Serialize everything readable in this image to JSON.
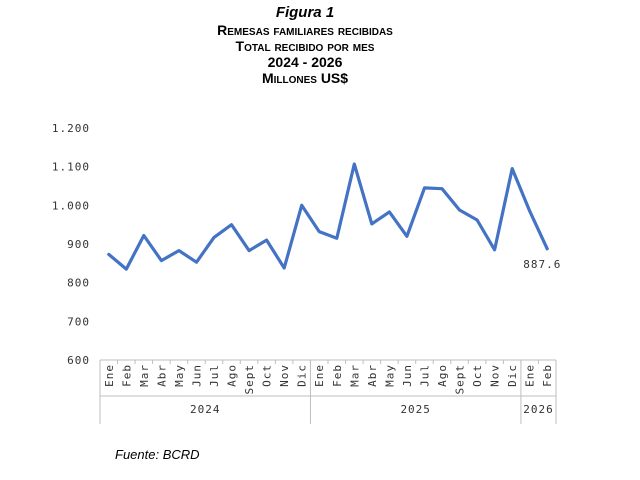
{
  "title": {
    "figure": "Figura 1",
    "line1": "Remesas familiares recibidas",
    "line2": "Total recibido por mes",
    "line3": "2024 - 2026",
    "line4": "Millones US$"
  },
  "source": "Fuente: BCRD",
  "chart_data": {
    "type": "line",
    "categories": [
      "Ene",
      "Feb",
      "Mar",
      "Abr",
      "May",
      "Jun",
      "Jul",
      "Ago",
      "Sept",
      "Oct",
      "Nov",
      "Dic",
      "Ene",
      "Feb",
      "Mar",
      "Abr",
      "May",
      "Jun",
      "Jul",
      "Ago",
      "Sept",
      "Oct",
      "Nov",
      "Dic",
      "Ene",
      "Feb"
    ],
    "year_groups": [
      {
        "label": "2024",
        "count": 12
      },
      {
        "label": "2025",
        "count": 12
      },
      {
        "label": "2026",
        "count": 2
      }
    ],
    "series": [
      {
        "values": [
          873,
          835,
          922,
          857,
          883,
          853,
          917,
          950,
          883,
          910,
          838,
          1000,
          932,
          915,
          1107,
          952,
          983,
          920,
          1045,
          1043,
          988,
          962,
          885,
          1095,
          985,
          887.6
        ],
        "color": "#4472C4"
      }
    ],
    "data_labels": [
      {
        "index": 25,
        "text": "887.6"
      }
    ],
    "yticks": [
      600,
      700,
      800,
      900,
      1000,
      1100,
      1200
    ],
    "ytick_labels": [
      "600",
      "700",
      "800",
      "900",
      "1.000",
      "1.100",
      "1.200"
    ],
    "ylim": [
      600,
      1200
    ],
    "grid": false,
    "legend": "none"
  }
}
